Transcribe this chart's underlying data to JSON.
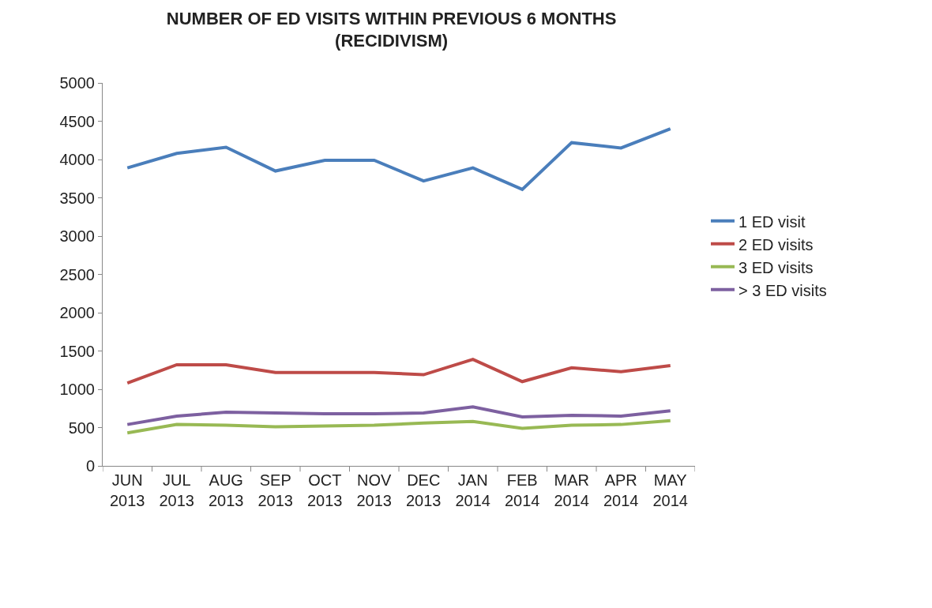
{
  "chart_data": {
    "type": "line",
    "title": "NUMBER OF ED VISITS WITHIN PREVIOUS 6 MONTHS\n(RECIDIVISM)",
    "categories": [
      "JUN\n2013",
      "JUL\n2013",
      "AUG\n2013",
      "SEP\n2013",
      "OCT\n2013",
      "NOV\n2013",
      "DEC\n2013",
      "JAN\n2014",
      "FEB\n2014",
      "MAR\n2014",
      "APR\n2014",
      "MAY\n2014"
    ],
    "series": [
      {
        "name": "1 ED visit",
        "color": "#4a7ebb",
        "values": [
          3890,
          4080,
          4160,
          3850,
          3990,
          3990,
          3720,
          3890,
          3610,
          4220,
          4150,
          4400
        ]
      },
      {
        "name": "2 ED visits",
        "color": "#be4b48",
        "values": [
          1080,
          1320,
          1320,
          1220,
          1220,
          1220,
          1190,
          1390,
          1100,
          1280,
          1230,
          1310
        ]
      },
      {
        "name": "3 ED visits",
        "color": "#98b954",
        "values": [
          430,
          540,
          530,
          510,
          520,
          530,
          560,
          580,
          490,
          530,
          540,
          590
        ]
      },
      {
        "name": "> 3 ED visits",
        "color": "#7d60a0",
        "values": [
          540,
          650,
          700,
          690,
          680,
          680,
          690,
          770,
          640,
          660,
          650,
          720
        ]
      }
    ],
    "ylim": [
      0,
      5000
    ],
    "yticks": [
      0,
      500,
      1000,
      1500,
      2000,
      2500,
      3000,
      3500,
      4000,
      4500,
      5000
    ],
    "legend": "right",
    "marker": "none",
    "line_style": "solid"
  }
}
